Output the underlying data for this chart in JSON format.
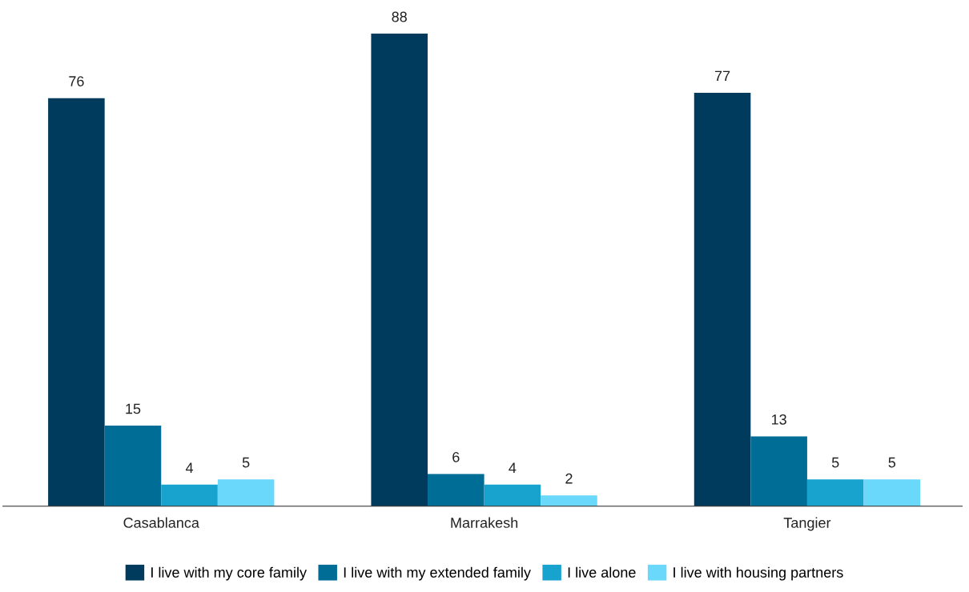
{
  "chart_data": {
    "type": "bar",
    "categories": [
      "Casablanca",
      "Marrakesh",
      "Tangier"
    ],
    "series": [
      {
        "name": "I live with my core family",
        "color": "#003a5c",
        "values": [
          76,
          88,
          77
        ]
      },
      {
        "name": "I live with my extended family",
        "color": "#006d96",
        "values": [
          15,
          6,
          13
        ]
      },
      {
        "name": "I live alone",
        "color": "#18a3cf",
        "values": [
          4,
          4,
          5
        ]
      },
      {
        "name": "I live with housing partners",
        "color": "#6ad8fb",
        "values": [
          5,
          2,
          5
        ]
      }
    ],
    "data_labels": true,
    "legend": "bottom",
    "grid": false
  }
}
